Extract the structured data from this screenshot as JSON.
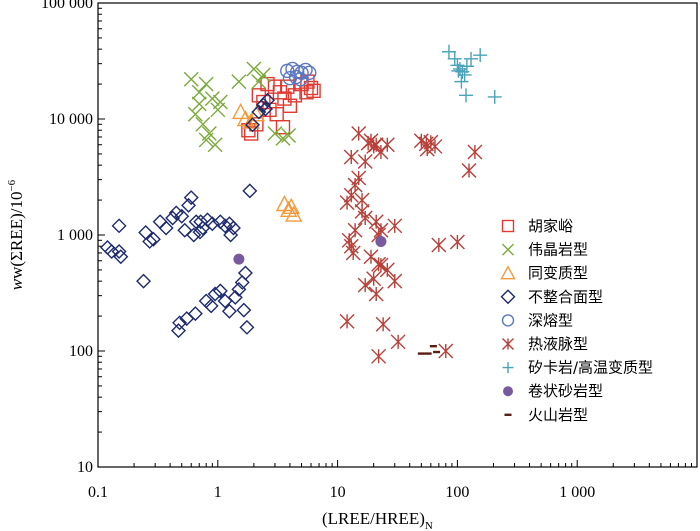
{
  "chart_data": {
    "type": "scatter",
    "xscale": "log",
    "yscale": "log",
    "xlim": [
      0.1,
      10000
    ],
    "ylim": [
      10,
      100000
    ],
    "xlabel": "(LREE/HREE)",
    "xlabel_sub": "N",
    "ylabel": "w(ΣREE)/10",
    "ylabel_sup": "−6",
    "xticks": [
      {
        "value": 0.1,
        "label": "0.1"
      },
      {
        "value": 1,
        "label": "1"
      },
      {
        "value": 10,
        "label": "10"
      },
      {
        "value": 100,
        "label": "100"
      },
      {
        "value": 1000,
        "label": "1 000"
      }
    ],
    "yticks": [
      {
        "value": 10,
        "label": "10"
      },
      {
        "value": 100,
        "label": "100"
      },
      {
        "value": 1000,
        "label": "1 000"
      },
      {
        "value": 10000,
        "label": "10 000"
      },
      {
        "value": 100000,
        "label": "100 000"
      }
    ],
    "legend_position": "right",
    "series": [
      {
        "name": "胡家峪",
        "marker": "square",
        "color": "#e03a32",
        "points": [
          [
            2.2,
            16000
          ],
          [
            2.6,
            20000
          ],
          [
            3.0,
            19000
          ],
          [
            3.3,
            17000
          ],
          [
            3.6,
            15000
          ],
          [
            4.0,
            13000
          ],
          [
            4.4,
            16000
          ],
          [
            5.0,
            20000
          ],
          [
            5.5,
            17000
          ],
          [
            6.0,
            18500
          ],
          [
            6.3,
            17500
          ],
          [
            2.7,
            12000
          ],
          [
            3.1,
            11000
          ],
          [
            1.8,
            8000
          ],
          [
            1.9,
            7500
          ],
          [
            2.1,
            9000
          ],
          [
            3.5,
            8500
          ],
          [
            2.4,
            14000
          ],
          [
            5.6,
            21000
          ],
          [
            3.8,
            19000
          ]
        ]
      },
      {
        "name": "伟晶岩型",
        "marker": "x",
        "color": "#7aaa3a",
        "points": [
          [
            0.6,
            22000
          ],
          [
            0.7,
            17000
          ],
          [
            0.8,
            20000
          ],
          [
            0.9,
            15000
          ],
          [
            1.0,
            12000
          ],
          [
            0.75,
            9000
          ],
          [
            0.85,
            7500
          ],
          [
            0.95,
            6000
          ],
          [
            0.65,
            11000
          ],
          [
            0.7,
            13500
          ],
          [
            1.05,
            14000
          ],
          [
            2.0,
            27000
          ],
          [
            2.4,
            24000
          ],
          [
            2.2,
            21000
          ],
          [
            3.0,
            7500
          ],
          [
            3.5,
            6800
          ],
          [
            3.9,
            7200
          ],
          [
            0.8,
            6600
          ],
          [
            1.5,
            21000
          ]
        ]
      },
      {
        "name": "同变质型",
        "marker": "triangle",
        "color": "#f39a3a",
        "points": [
          [
            1.55,
            11500
          ],
          [
            1.7,
            10000
          ],
          [
            1.9,
            9500
          ],
          [
            2.1,
            11000
          ],
          [
            3.6,
            1850
          ],
          [
            3.9,
            1650
          ],
          [
            4.3,
            1500
          ],
          [
            4.1,
            1750
          ]
        ]
      },
      {
        "name": "不整合面型",
        "marker": "diamond",
        "color": "#1d2a6e",
        "points": [
          [
            0.12,
            780
          ],
          [
            0.13,
            720
          ],
          [
            0.15,
            720
          ],
          [
            0.155,
            650
          ],
          [
            0.15,
            1200
          ],
          [
            0.25,
            1050
          ],
          [
            0.27,
            880
          ],
          [
            0.29,
            920
          ],
          [
            0.33,
            1300
          ],
          [
            0.37,
            1150
          ],
          [
            0.42,
            1400
          ],
          [
            0.45,
            1550
          ],
          [
            0.5,
            1450
          ],
          [
            0.53,
            1100
          ],
          [
            0.57,
            1800
          ],
          [
            0.6,
            2100
          ],
          [
            0.66,
            1300
          ],
          [
            0.72,
            1300
          ],
          [
            0.75,
            1150
          ],
          [
            0.82,
            1350
          ],
          [
            0.9,
            1250
          ],
          [
            1.05,
            1300
          ],
          [
            1.15,
            1200
          ],
          [
            1.25,
            1250
          ],
          [
            1.35,
            1150
          ],
          [
            1.28,
            1000
          ],
          [
            0.63,
            1000
          ],
          [
            0.71,
            1060
          ],
          [
            0.24,
            400
          ],
          [
            0.47,
            150
          ],
          [
            0.48,
            175
          ],
          [
            0.55,
            190
          ],
          [
            0.65,
            210
          ],
          [
            0.8,
            270
          ],
          [
            0.95,
            310
          ],
          [
            1.05,
            330
          ],
          [
            1.15,
            270
          ],
          [
            1.25,
            220
          ],
          [
            1.4,
            290
          ],
          [
            1.5,
            340
          ],
          [
            1.6,
            390
          ],
          [
            1.7,
            470
          ],
          [
            1.75,
            160
          ],
          [
            1.65,
            225
          ],
          [
            0.88,
            245
          ],
          [
            1.85,
            2400
          ],
          [
            2.2,
            11500
          ],
          [
            2.4,
            13200
          ],
          [
            2.6,
            14500
          ],
          [
            2.5,
            12200
          ],
          [
            1.95,
            8900
          ]
        ]
      },
      {
        "name": "深熔型",
        "marker": "circle",
        "color": "#5b78c2",
        "points": [
          [
            3.8,
            26000
          ],
          [
            4.2,
            27000
          ],
          [
            4.6,
            25500
          ],
          [
            5.0,
            25000
          ],
          [
            5.4,
            26500
          ],
          [
            4.0,
            22500
          ],
          [
            4.5,
            23000
          ],
          [
            4.9,
            22000
          ],
          [
            5.8,
            25000
          ]
        ]
      },
      {
        "name": "热液脉型",
        "marker": "star",
        "color": "#b6403a",
        "points": [
          [
            15,
            7500
          ],
          [
            19,
            6500
          ],
          [
            21,
            6000
          ],
          [
            23,
            5200
          ],
          [
            26,
            6000
          ],
          [
            13,
            4700
          ],
          [
            17,
            4300
          ],
          [
            15,
            3100
          ],
          [
            14,
            2700
          ],
          [
            13,
            2200
          ],
          [
            16,
            2000
          ],
          [
            12,
            1900
          ],
          [
            16,
            1600
          ],
          [
            17,
            1400
          ],
          [
            21,
            1300
          ],
          [
            14,
            1100
          ],
          [
            12.5,
            900
          ],
          [
            13,
            800
          ],
          [
            13.5,
            700
          ],
          [
            19,
            650
          ],
          [
            22,
            560
          ],
          [
            23,
            550
          ],
          [
            26,
            500
          ],
          [
            20,
            420
          ],
          [
            30,
            400
          ],
          [
            17,
            370
          ],
          [
            21,
            310
          ],
          [
            12,
            180
          ],
          [
            24,
            170
          ],
          [
            32,
            120
          ],
          [
            22,
            90
          ],
          [
            80,
            100
          ],
          [
            70,
            820
          ],
          [
            100,
            870
          ],
          [
            30,
            1200
          ],
          [
            23,
            1100
          ],
          [
            22,
            1000
          ],
          [
            20,
            5800
          ],
          [
            18,
            6200
          ],
          [
            50,
            6500
          ],
          [
            55,
            6100
          ],
          [
            60,
            6300
          ],
          [
            65,
            5800
          ],
          [
            56,
            5500
          ],
          [
            140,
            5200
          ],
          [
            125,
            3600
          ]
        ]
      },
      {
        "name": "矽卡岩/高温变质型",
        "marker": "plus",
        "color": "#4aa3ba",
        "points": [
          [
            85,
            38000
          ],
          [
            95,
            33000
          ],
          [
            100,
            29000
          ],
          [
            105,
            27000
          ],
          [
            110,
            25500
          ],
          [
            115,
            24000
          ],
          [
            120,
            28500
          ],
          [
            130,
            33000
          ],
          [
            155,
            35500
          ],
          [
            118,
            16000
          ],
          [
            205,
            15500
          ],
          [
            108,
            21000
          ],
          [
            102,
            26000
          ]
        ]
      },
      {
        "name": "卷状砂岩型",
        "marker": "dot",
        "color": "#7a5a9e",
        "points": [
          [
            1.5,
            620
          ],
          [
            23,
            880
          ]
        ]
      },
      {
        "name": "火山岩型",
        "marker": "dash",
        "color": "#5a1e12",
        "points": [
          [
            50,
            95
          ],
          [
            57,
            95
          ],
          [
            63,
            110
          ],
          [
            67,
            98
          ]
        ]
      }
    ]
  }
}
